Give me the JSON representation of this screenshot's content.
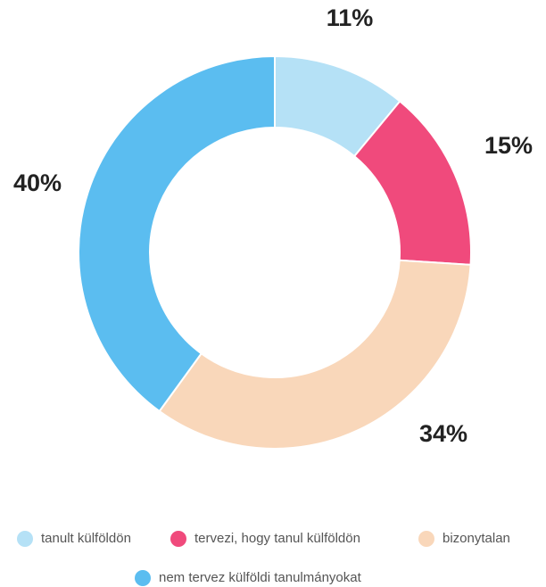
{
  "chart_data": {
    "type": "donut",
    "categories": [
      "tanult külföldön",
      "tervezi, hogy tanul külföldön",
      "bizonytalan",
      "nem tervez külföldi tanulmányokat"
    ],
    "values": [
      11,
      15,
      34,
      40
    ],
    "value_labels": [
      "11%",
      "15%",
      "34%",
      "40%"
    ],
    "colors": [
      "#b5e1f6",
      "#f04a7c",
      "#f9d7ba",
      "#5bbdf0"
    ],
    "legend": "bottom"
  }
}
